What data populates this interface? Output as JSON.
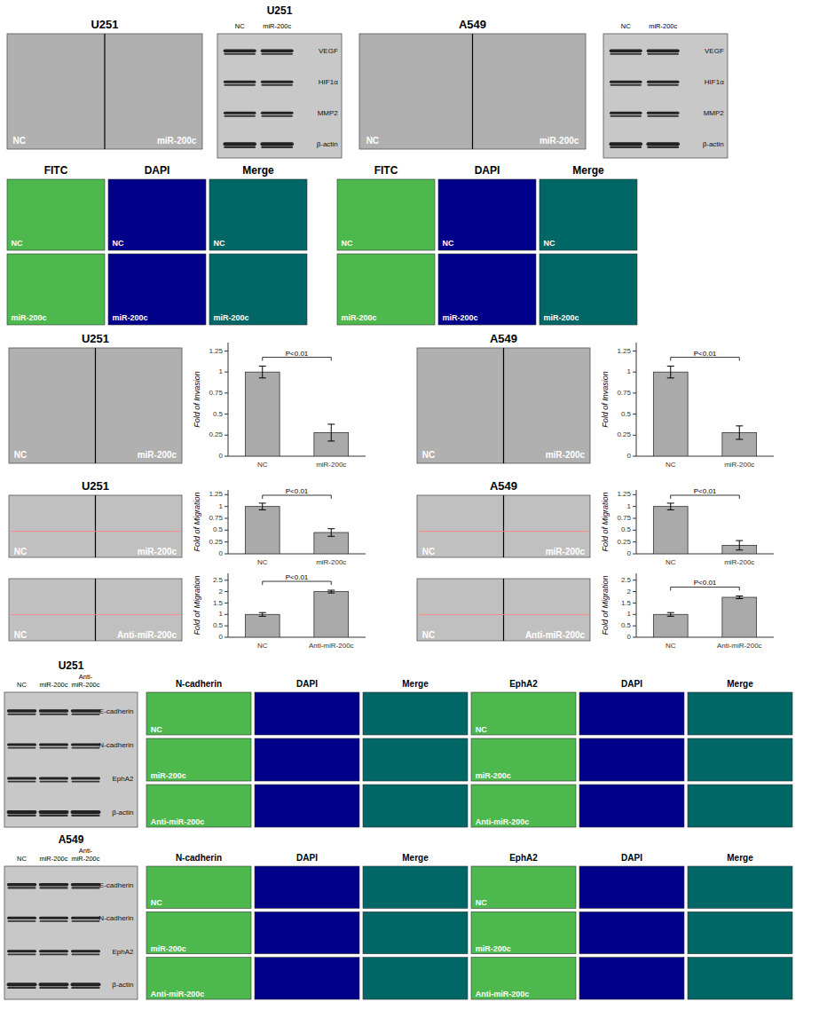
{
  "chart_data": [
    {
      "type": "image",
      "title": "U251",
      "annotations": [
        "NC",
        "miR-200c"
      ],
      "color": "#b0b0b0"
    },
    {
      "type": "western_blot",
      "title": "U251",
      "categories": [
        "NC",
        "miR-200c"
      ],
      "series": [
        {
          "name": "VEGF"
        },
        {
          "name": "HIF1α"
        },
        {
          "name": "MMP2"
        },
        {
          "name": "β-actin"
        }
      ],
      "color": "#c8c8c8"
    },
    {
      "type": "image",
      "title": "A549",
      "annotations": [
        "NC",
        "miR-200c"
      ],
      "color": "#b0b0b0"
    },
    {
      "type": "western_blot",
      "categories": [
        "NC",
        "miR-200c"
      ],
      "series": [
        {
          "name": "VEGF"
        },
        {
          "name": "HIF1α"
        },
        {
          "name": "MMP2"
        },
        {
          "name": "β-actin"
        }
      ],
      "color": "#c8c8c8"
    },
    {
      "type": "fluorescence",
      "categories": [
        "FITC",
        "DAPI",
        "Merge"
      ],
      "series": [
        {
          "name": "NC"
        },
        {
          "name": "miR-200c"
        }
      ],
      "colors": [
        "#4db84d",
        "#00008b",
        "#006666"
      ]
    },
    {
      "type": "fluorescence",
      "categories": [
        "FITC",
        "DAPI",
        "Merge"
      ],
      "series": [
        {
          "name": "NC"
        },
        {
          "name": "miR-200c"
        }
      ],
      "colors": [
        "#4db84d",
        "#00008b",
        "#006666"
      ]
    },
    {
      "type": "image",
      "title": "U251",
      "annotations": [
        "NC",
        "miR-200c"
      ],
      "color": "#b0b0b0"
    },
    {
      "type": "bar",
      "categories": [
        "NC",
        "miR-200c"
      ],
      "values": [
        1.0,
        0.28
      ],
      "errors": [
        0.07,
        0.1
      ],
      "ylabel": "Fold of Invasion",
      "ylim": [
        0,
        1.35
      ],
      "yticks": [
        0,
        0.25,
        0.5,
        0.75,
        1,
        1.25
      ],
      "color": "#aaaaaa",
      "grid": false,
      "annotations": [
        "P<0.01"
      ]
    },
    {
      "type": "image",
      "title": "A549",
      "annotations": [
        "NC",
        "miR-200c"
      ],
      "color": "#b0b0b0"
    },
    {
      "type": "bar",
      "categories": [
        "NC",
        "miR-200c"
      ],
      "values": [
        1.0,
        0.28
      ],
      "errors": [
        0.07,
        0.08
      ],
      "ylabel": "Fold of Invasion",
      "ylim": [
        0,
        1.35
      ],
      "yticks": [
        0,
        0.25,
        0.5,
        0.75,
        1,
        1.25
      ],
      "color": "#aaaaaa",
      "grid": false,
      "annotations": [
        "P<0.01"
      ]
    },
    {
      "type": "scratch",
      "title": "U251",
      "annotations": [
        "NC",
        "miR-200c"
      ],
      "color": "#c0c0c0"
    },
    {
      "type": "bar",
      "categories": [
        "NC",
        "miR-200c"
      ],
      "values": [
        1.0,
        0.45
      ],
      "errors": [
        0.07,
        0.08
      ],
      "ylabel": "Fold of Migration",
      "ylim": [
        0,
        1.35
      ],
      "yticks": [
        0,
        0.25,
        0.5,
        0.75,
        1,
        1.25
      ],
      "color": "#aaaaaa",
      "grid": false,
      "annotations": [
        "P<0.01"
      ]
    },
    {
      "type": "scratch",
      "title": "A549",
      "annotations": [
        "NC",
        "miR-200c"
      ],
      "color": "#c0c0c0"
    },
    {
      "type": "bar",
      "categories": [
        "NC",
        "miR-200c"
      ],
      "values": [
        1.0,
        0.18
      ],
      "errors": [
        0.07,
        0.1
      ],
      "ylabel": "Fold of Migration",
      "ylim": [
        0,
        1.35
      ],
      "yticks": [
        0,
        0.25,
        0.5,
        0.75,
        1,
        1.25
      ],
      "color": "#aaaaaa",
      "grid": false,
      "annotations": [
        "P<0.01"
      ]
    },
    {
      "type": "scratch",
      "annotations": [
        "NC",
        "Anti-miR-200c"
      ],
      "color": "#c0c0c0"
    },
    {
      "type": "bar",
      "categories": [
        "NC",
        "Anti-miR-200c"
      ],
      "values": [
        1.0,
        2.0
      ],
      "errors": [
        0.08,
        0.06
      ],
      "ylabel": "Fold of Migration",
      "ylim": [
        0,
        2.8
      ],
      "yticks": [
        0,
        0.5,
        1,
        1.5,
        2,
        2.5
      ],
      "color": "#aaaaaa",
      "grid": false,
      "annotations": [
        "P<0.01"
      ]
    },
    {
      "type": "scratch",
      "annotations": [
        "NC",
        "Anti-miR-200c"
      ],
      "color": "#c0c0c0"
    },
    {
      "type": "bar",
      "categories": [
        "NC",
        "Anti-miR-200c"
      ],
      "values": [
        1.0,
        1.75
      ],
      "errors": [
        0.08,
        0.06
      ],
      "ylabel": "Fold of Migration",
      "ylim": [
        0,
        2.8
      ],
      "yticks": [
        0,
        0.5,
        1,
        1.5,
        2,
        2.5
      ],
      "color": "#aaaaaa",
      "grid": false,
      "annotations": [
        "P<0.01"
      ]
    },
    {
      "type": "western_blot",
      "title": "U251",
      "categories": [
        "NC",
        "miR-200c",
        "Anti-\nmiR-200c"
      ],
      "series": [
        {
          "name": "E-cadherin"
        },
        {
          "name": "N-cadherin"
        },
        {
          "name": "EphA2"
        },
        {
          "name": "β-actin"
        }
      ],
      "color": "#c8c8c8"
    },
    {
      "type": "fluorescence",
      "categories": [
        "N-cadherin",
        "DAPI",
        "Merge",
        "EphA2",
        "DAPI",
        "Merge"
      ],
      "series": [
        {
          "name": "NC"
        },
        {
          "name": "miR-200c"
        },
        {
          "name": "Anti-miR-200c"
        }
      ],
      "colors": [
        "#4db84d",
        "#00008b",
        "#006666",
        "#4db84d",
        "#00008b",
        "#006666"
      ]
    },
    {
      "type": "western_blot",
      "title": "A549",
      "categories": [
        "NC",
        "miR-200c",
        "Anti-\nmiR-200c"
      ],
      "series": [
        {
          "name": "E-cadherin"
        },
        {
          "name": "N-cadherin"
        },
        {
          "name": "EphA2"
        },
        {
          "name": "β-actin"
        }
      ],
      "color": "#c8c8c8"
    },
    {
      "type": "fluorescence",
      "categories": [
        "N-cadherin",
        "DAPI",
        "Merge",
        "EphA2",
        "DAPI",
        "Merge"
      ],
      "series": [
        {
          "name": "NC"
        },
        {
          "name": "miR-200c"
        },
        {
          "name": "Anti-miR-200c"
        }
      ],
      "colors": [
        "#4db84d",
        "#00008b",
        "#006666",
        "#4db84d",
        "#00008b",
        "#006666"
      ]
    }
  ]
}
